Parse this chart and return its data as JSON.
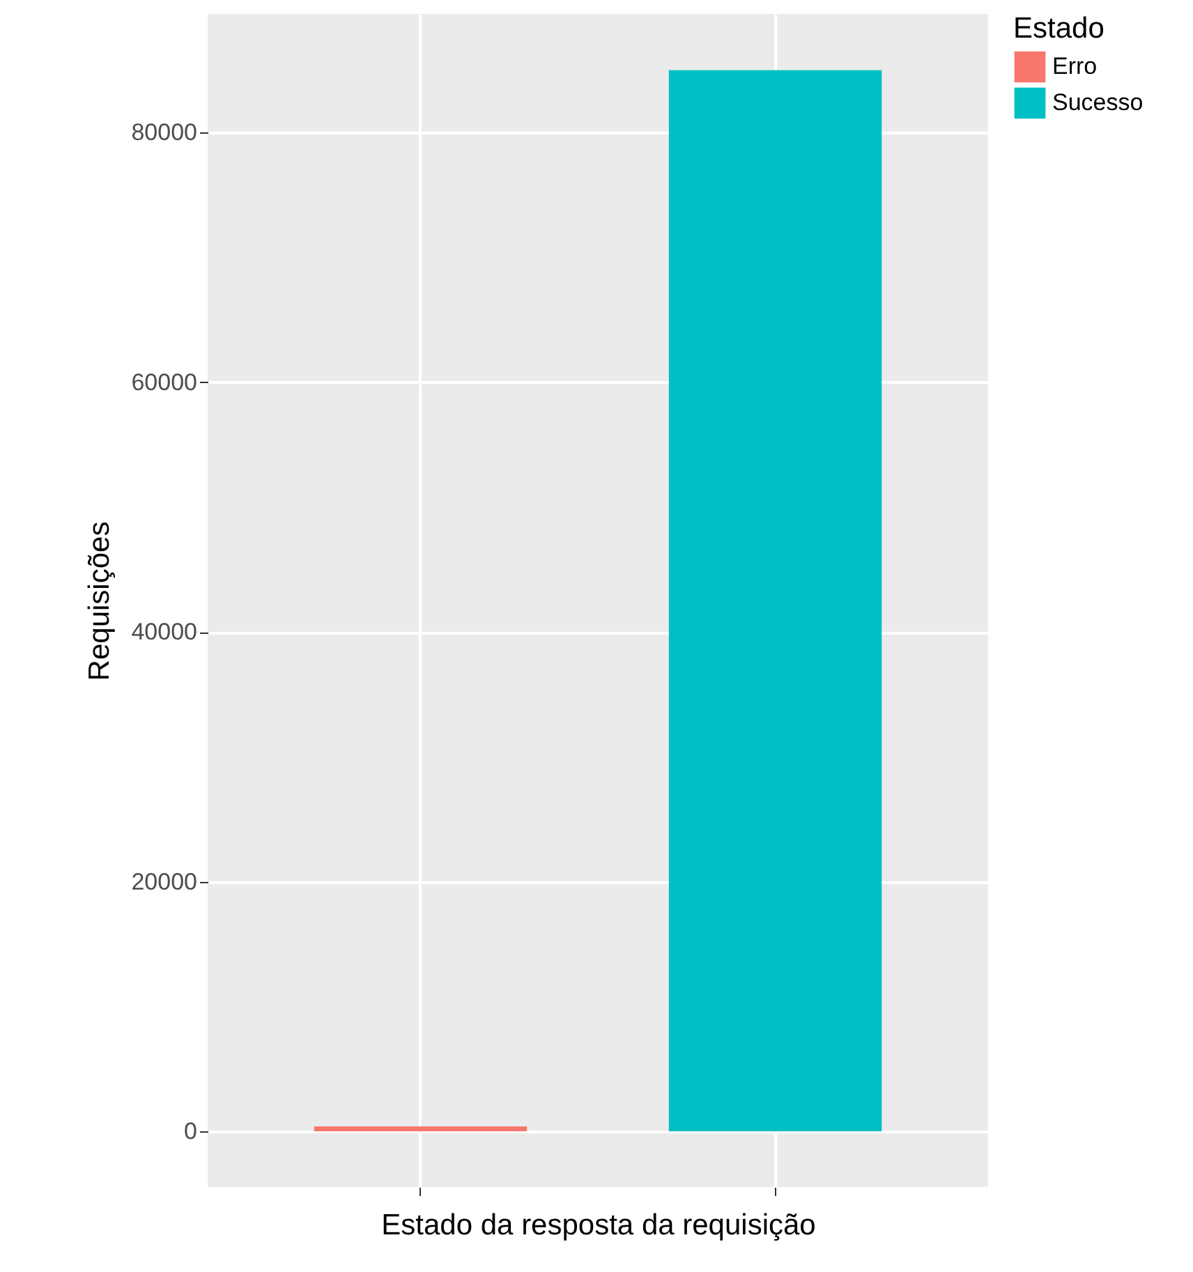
{
  "chart_data": {
    "type": "bar",
    "xlabel": "Estado da resposta da requisição",
    "ylabel": "Requisições",
    "legend_title": "Estado",
    "categories": [
      null,
      null
    ],
    "series": [
      {
        "name": "Erro",
        "color": "#f8766d",
        "values": [
          400,
          null
        ]
      },
      {
        "name": "Sucesso",
        "color": "#00bfc4",
        "values": [
          null,
          85000
        ]
      }
    ],
    "ylim": [
      -4460,
      89500
    ],
    "yticks": [
      0,
      20000,
      40000,
      60000,
      80000
    ],
    "grid": true,
    "legend": "right"
  }
}
